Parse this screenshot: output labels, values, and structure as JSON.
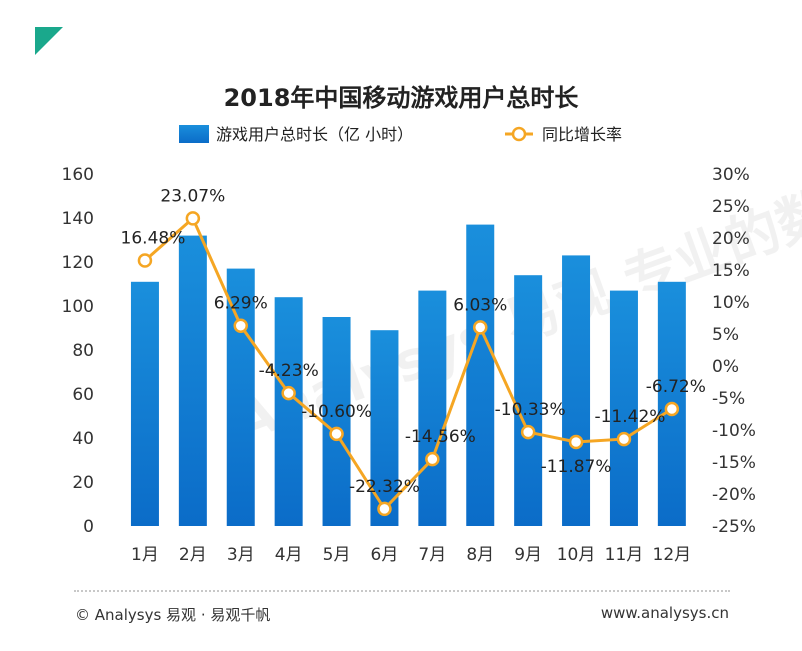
{
  "chart_data": {
    "type": "bar-line",
    "title": "2018年中国移动游戏用户总时长",
    "categories": [
      "1月",
      "2月",
      "3月",
      "4月",
      "5月",
      "6月",
      "7月",
      "8月",
      "9月",
      "10月",
      "11月",
      "12月"
    ],
    "series": [
      {
        "name": "游戏用户总时长（亿 小时）",
        "type": "bar",
        "axis": "left",
        "values": [
          111,
          132,
          117,
          104,
          95,
          89,
          107,
          137,
          114,
          123,
          107,
          111
        ]
      },
      {
        "name": "同比增长率",
        "type": "line",
        "axis": "right",
        "values": [
          16.48,
          23.07,
          6.29,
          -4.23,
          -10.6,
          -22.32,
          -14.56,
          6.03,
          -10.33,
          -11.87,
          -11.42,
          -6.72
        ],
        "labels": [
          "16.48%",
          "23.07%",
          "6.29%",
          "-4.23%",
          "-10.60%",
          "-22.32%",
          "-14.56%",
          "6.03%",
          "-10.33%",
          "-11.87%",
          "-11.42%",
          "-6.72%"
        ]
      }
    ],
    "yleft": {
      "range": [
        0,
        160
      ],
      "ticks": [
        0,
        20,
        40,
        60,
        80,
        100,
        120,
        140,
        160
      ]
    },
    "yright": {
      "range": [
        -25,
        30
      ],
      "ticks": [
        30,
        25,
        20,
        15,
        10,
        5,
        0,
        -5,
        -10,
        -15,
        -20,
        -25
      ],
      "tick_labels": [
        "30%",
        "25%",
        "20%",
        "15%",
        "10%",
        "5%",
        "0%",
        "-5%",
        "-10%",
        "-15%",
        "-20%",
        "-25%"
      ]
    },
    "legend_position": "top-center",
    "grid": false,
    "colors": {
      "bar_top": "#1a8fdc",
      "bar_bottom": "#0b6cc8",
      "line": "#f5a623",
      "marker_fill": "#ffffff"
    }
  },
  "footer": {
    "left": "© Analysys 易观 · 易观千帆",
    "right": "www.analysys.cn"
  },
  "watermark": "Analysys 易观  专业的数据分析"
}
